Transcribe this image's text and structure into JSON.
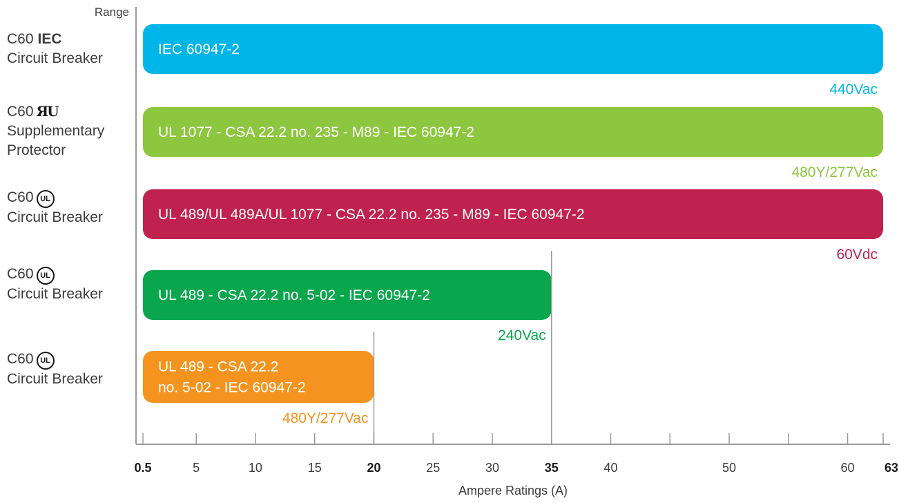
{
  "chart_data": {
    "type": "bar",
    "title": "",
    "range_label": "Range",
    "xlabel": "Ampere Ratings (A)",
    "xlim": [
      0.5,
      63
    ],
    "ticks": [
      {
        "value": 0.5,
        "label": "0.5",
        "bold": true
      },
      {
        "value": 5,
        "label": "5",
        "bold": false
      },
      {
        "value": 10,
        "label": "10",
        "bold": false
      },
      {
        "value": 15,
        "label": "15",
        "bold": false
      },
      {
        "value": 20,
        "label": "20",
        "bold": true
      },
      {
        "value": 25,
        "label": "25",
        "bold": false
      },
      {
        "value": 30,
        "label": "30",
        "bold": false
      },
      {
        "value": 35,
        "label": "35",
        "bold": true
      },
      {
        "value": 40,
        "label": "40",
        "bold": false
      },
      {
        "value": 45,
        "label": "",
        "bold": false
      },
      {
        "value": 50,
        "label": "50",
        "bold": false
      },
      {
        "value": 55,
        "label": "",
        "bold": false
      },
      {
        "value": 60,
        "label": "60",
        "bold": false
      },
      {
        "value": 63,
        "label": "63",
        "bold": true
      }
    ],
    "series": [
      {
        "label_prefix": "C60",
        "mark_type": "text-bold",
        "mark_text": "IEC",
        "label_lines": [
          "Circuit Breaker"
        ],
        "standards": [
          "IEC 60947-2"
        ],
        "voltage": "440Vac",
        "start": 0.5,
        "end": 63,
        "color": "#00b5e8"
      },
      {
        "label_prefix": "C60",
        "mark_type": "recognized-component",
        "mark_text": "",
        "label_lines": [
          "Supplementary",
          "Protector"
        ],
        "standards": [
          "UL 1077 - CSA 22.2 no. 235 - M89 - IEC 60947-2"
        ],
        "voltage": "480Y/277Vac",
        "start": 0.5,
        "end": 63,
        "color": "#8dc63f"
      },
      {
        "label_prefix": "C60",
        "mark_type": "ul-listed",
        "mark_text": "UL",
        "label_lines": [
          "Circuit Breaker"
        ],
        "standards": [
          "UL 489/UL 489A/UL 1077 - CSA 22.2 no. 235 - M89 - IEC 60947-2"
        ],
        "voltage": "60Vdc",
        "start": 0.5,
        "end": 63,
        "color": "#c0224f"
      },
      {
        "label_prefix": "C60",
        "mark_type": "ul-listed",
        "mark_text": "UL",
        "label_lines": [
          "Circuit Breaker"
        ],
        "standards": [
          "UL 489 - CSA 22.2 no. 5-02 - IEC 60947-2"
        ],
        "voltage": "240Vac",
        "start": 0.5,
        "end": 35,
        "color": "#0aa64d"
      },
      {
        "label_prefix": "C60",
        "mark_type": "ul-listed",
        "mark_text": "UL",
        "label_lines": [
          "Circuit Breaker"
        ],
        "standards": [
          "UL 489 - CSA 22.2",
          "no. 5-02 - IEC 60947-2"
        ],
        "voltage": "480Y/277Vac",
        "start": 0.5,
        "end": 20,
        "color": "#f4941f"
      }
    ]
  }
}
